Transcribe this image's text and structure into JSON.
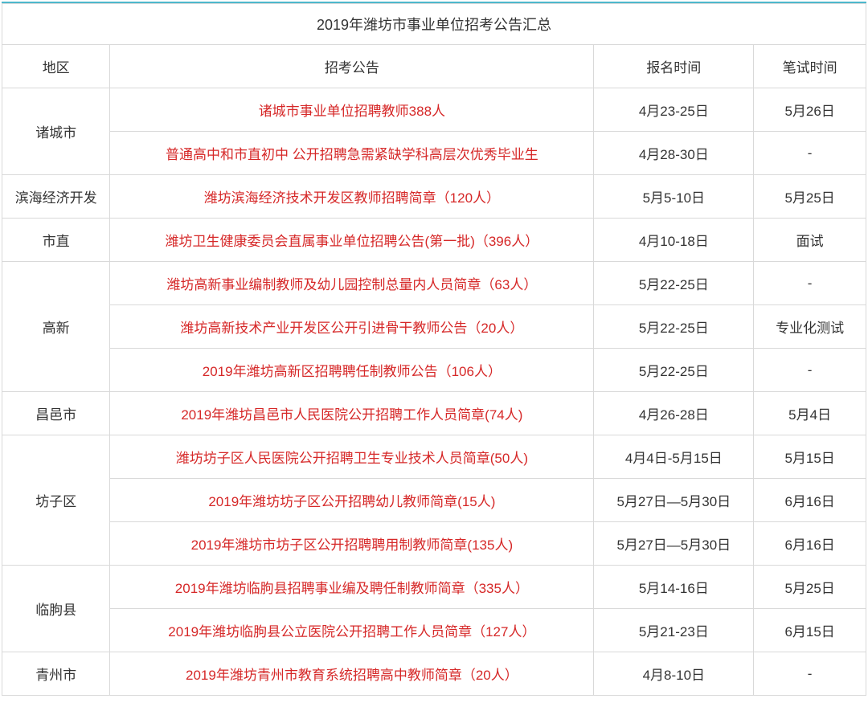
{
  "title": "2019年潍坊市事业单位招考公告汇总",
  "headers": {
    "region": "地区",
    "announcement": "招考公告",
    "reg_date": "报名时间",
    "exam_date": "笔试时间"
  },
  "colors": {
    "border_top": "#4db8cc",
    "cell_border": "#d9d9d9",
    "text_normal": "#333333",
    "text_link": "#d62828",
    "background": "#ffffff"
  },
  "font": {
    "family": "Microsoft YaHei",
    "title_size": 18,
    "body_size": 17
  },
  "regions": [
    {
      "name": "诸城市",
      "rows": [
        {
          "announcement": "诸城市事业单位招聘教师388人",
          "reg_date": "4月23-25日",
          "exam_date": "5月26日"
        },
        {
          "announcement": "普通高中和市直初中 公开招聘急需紧缺学科高层次优秀毕业生",
          "reg_date": "4月28-30日",
          "exam_date": "-"
        }
      ]
    },
    {
      "name": "滨海经济开发",
      "rows": [
        {
          "announcement": "潍坊滨海经济技术开发区教师招聘简章（120人）",
          "reg_date": "5月5-10日",
          "exam_date": "5月25日"
        }
      ]
    },
    {
      "name": "市直",
      "rows": [
        {
          "announcement": "潍坊卫生健康委员会直属事业单位招聘公告(第一批)（396人）",
          "reg_date": "4月10-18日",
          "exam_date": "面试"
        }
      ]
    },
    {
      "name": "高新",
      "rows": [
        {
          "announcement": "潍坊高新事业编制教师及幼儿园控制总量内人员简章（63人）",
          "reg_date": "5月22-25日",
          "exam_date": "-"
        },
        {
          "announcement": "潍坊高新技术产业开发区公开引进骨干教师公告（20人）",
          "reg_date": "5月22-25日",
          "exam_date": "专业化测试"
        },
        {
          "announcement": "2019年潍坊高新区招聘聘任制教师公告（106人）",
          "reg_date": "5月22-25日",
          "exam_date": "-"
        }
      ]
    },
    {
      "name": "昌邑市",
      "rows": [
        {
          "announcement": "2019年潍坊昌邑市人民医院公开招聘工作人员简章(74人)",
          "reg_date": "4月26-28日",
          "exam_date": "5月4日"
        }
      ]
    },
    {
      "name": "坊子区",
      "rows": [
        {
          "announcement": "潍坊坊子区人民医院公开招聘卫生专业技术人员简章(50人)",
          "reg_date": "4月4日-5月15日",
          "exam_date": "5月15日"
        },
        {
          "announcement": "2019年潍坊坊子区公开招聘幼儿教师简章(15人)",
          "reg_date": "5月27日—5月30日",
          "exam_date": "6月16日"
        },
        {
          "announcement": "2019年潍坊市坊子区公开招聘聘用制教师简章(135人)",
          "reg_date": "5月27日—5月30日",
          "exam_date": "6月16日"
        }
      ]
    },
    {
      "name": "临朐县",
      "rows": [
        {
          "announcement": "2019年潍坊临朐县招聘事业编及聘任制教师简章（335人）",
          "reg_date": "5月14-16日",
          "exam_date": "5月25日"
        },
        {
          "announcement": "2019年潍坊临朐县公立医院公开招聘工作人员简章（127人）",
          "reg_date": "5月21-23日",
          "exam_date": "6月15日"
        }
      ]
    },
    {
      "name": "青州市",
      "rows": [
        {
          "announcement": "2019年潍坊青州市教育系统招聘高中教师简章（20人）",
          "reg_date": "4月8-10日",
          "exam_date": "-"
        }
      ]
    }
  ]
}
